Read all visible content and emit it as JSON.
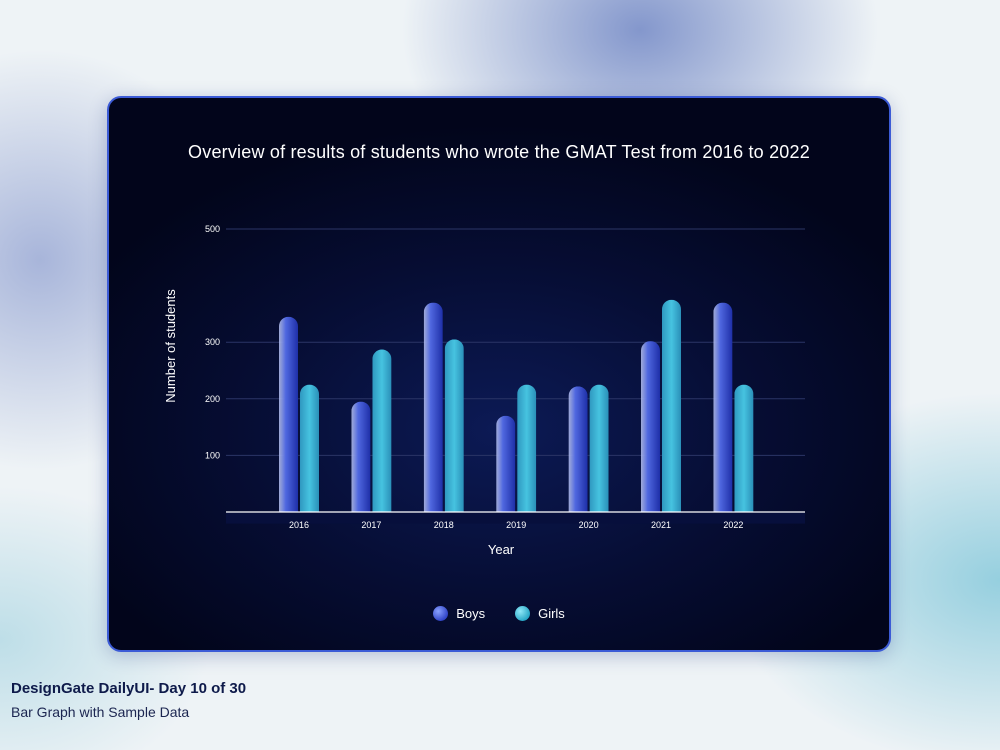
{
  "chart_data": {
    "type": "bar",
    "title": "Overview of results of students who wrote the GMAT Test from 2016 to 2022",
    "xlabel": "Year",
    "ylabel": "Number of students",
    "categories": [
      "2016",
      "2017",
      "2018",
      "2019",
      "2020",
      "2021",
      "2022"
    ],
    "series": [
      {
        "name": "Boys",
        "values": [
          345,
          195,
          370,
          170,
          222,
          302,
          370
        ]
      },
      {
        "name": "Girls",
        "values": [
          225,
          287,
          305,
          225,
          225,
          375,
          225
        ]
      }
    ],
    "y_ticks": [
      "100",
      "200",
      "300",
      "500"
    ],
    "ylim": [
      0,
      500
    ],
    "grid": true,
    "legend_position": "bottom-center",
    "colors": {
      "Boys": "#3a52d8",
      "Girls": "#36b6d8"
    }
  },
  "caption": {
    "title": "DesignGate DailyUI- Day 10 of 30",
    "subtitle": "Bar Graph with Sample Data"
  }
}
